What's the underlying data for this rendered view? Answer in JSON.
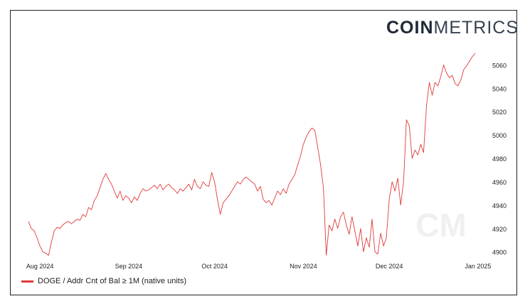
{
  "brand": {
    "logo_bold": "COIN",
    "logo_thin": "METRICS",
    "watermark": "CM"
  },
  "colors": {
    "series": "#e03a3a",
    "axis_text": "#222222",
    "watermark": "#f0f0f0"
  },
  "chart_data": {
    "type": "line",
    "grid": false,
    "legend_position": "bottom-left",
    "x_tick_labels": [
      "Aug 2024",
      "Sep 2024",
      "Oct 2024",
      "Nov 2024",
      "Dec 2024",
      "Jan 2025"
    ],
    "y_tick_labels": [
      "4900",
      "4920",
      "4940",
      "4960",
      "4980",
      "5000",
      "5020",
      "5040",
      "5060"
    ],
    "ylim": [
      4898,
      5073
    ],
    "xlim": [
      "2024-07-28",
      "2025-01-05"
    ],
    "series": [
      {
        "name": "DOGE / Addr Cnt of Bal ≥ 1M (native units)",
        "points": [
          [
            "2024-07-28",
            4926
          ],
          [
            "2024-07-29",
            4920
          ],
          [
            "2024-07-30",
            4918
          ],
          [
            "2024-07-31",
            4912
          ],
          [
            "2024-08-01",
            4905
          ],
          [
            "2024-08-02",
            4900
          ],
          [
            "2024-08-03",
            4899
          ],
          [
            "2024-08-04",
            4897
          ],
          [
            "2024-08-05",
            4908
          ],
          [
            "2024-08-06",
            4918
          ],
          [
            "2024-08-07",
            4921
          ],
          [
            "2024-08-08",
            4920
          ],
          [
            "2024-08-09",
            4923
          ],
          [
            "2024-08-10",
            4925
          ],
          [
            "2024-08-11",
            4926
          ],
          [
            "2024-08-12",
            4924
          ],
          [
            "2024-08-13",
            4926
          ],
          [
            "2024-08-14",
            4928
          ],
          [
            "2024-08-15",
            4927
          ],
          [
            "2024-08-16",
            4932
          ],
          [
            "2024-08-17",
            4930
          ],
          [
            "2024-08-18",
            4938
          ],
          [
            "2024-08-19",
            4936
          ],
          [
            "2024-08-20",
            4944
          ],
          [
            "2024-08-21",
            4948
          ],
          [
            "2024-08-22",
            4955
          ],
          [
            "2024-08-23",
            4962
          ],
          [
            "2024-08-24",
            4967
          ],
          [
            "2024-08-25",
            4962
          ],
          [
            "2024-08-26",
            4958
          ],
          [
            "2024-08-27",
            4952
          ],
          [
            "2024-08-28",
            4946
          ],
          [
            "2024-08-29",
            4952
          ],
          [
            "2024-08-30",
            4944
          ],
          [
            "2024-08-31",
            4948
          ],
          [
            "2024-09-01",
            4946
          ],
          [
            "2024-09-02",
            4942
          ],
          [
            "2024-09-03",
            4947
          ],
          [
            "2024-09-04",
            4944
          ],
          [
            "2024-09-05",
            4950
          ],
          [
            "2024-09-06",
            4954
          ],
          [
            "2024-09-07",
            4952
          ],
          [
            "2024-09-08",
            4953
          ],
          [
            "2024-09-09",
            4955
          ],
          [
            "2024-09-10",
            4957
          ],
          [
            "2024-09-11",
            4954
          ],
          [
            "2024-09-12",
            4958
          ],
          [
            "2024-09-13",
            4953
          ],
          [
            "2024-09-14",
            4956
          ],
          [
            "2024-09-15",
            4958
          ],
          [
            "2024-09-16",
            4955
          ],
          [
            "2024-09-17",
            4953
          ],
          [
            "2024-09-18",
            4950
          ],
          [
            "2024-09-19",
            4954
          ],
          [
            "2024-09-20",
            4952
          ],
          [
            "2024-09-21",
            4955
          ],
          [
            "2024-09-22",
            4958
          ],
          [
            "2024-09-23",
            4953
          ],
          [
            "2024-09-24",
            4962
          ],
          [
            "2024-09-25",
            4956
          ],
          [
            "2024-09-26",
            4954
          ],
          [
            "2024-09-27",
            4960
          ],
          [
            "2024-09-28",
            4957
          ],
          [
            "2024-09-29",
            4956
          ],
          [
            "2024-09-30",
            4968
          ],
          [
            "2024-10-01",
            4960
          ],
          [
            "2024-10-02",
            4945
          ],
          [
            "2024-10-03",
            4932
          ],
          [
            "2024-10-04",
            4942
          ],
          [
            "2024-10-05",
            4945
          ],
          [
            "2024-10-06",
            4948
          ],
          [
            "2024-10-07",
            4952
          ],
          [
            "2024-10-08",
            4956
          ],
          [
            "2024-10-09",
            4960
          ],
          [
            "2024-10-10",
            4958
          ],
          [
            "2024-10-11",
            4962
          ],
          [
            "2024-10-12",
            4964
          ],
          [
            "2024-10-13",
            4962
          ],
          [
            "2024-10-14",
            4960
          ],
          [
            "2024-10-15",
            4958
          ],
          [
            "2024-10-16",
            4952
          ],
          [
            "2024-10-17",
            4956
          ],
          [
            "2024-10-18",
            4945
          ],
          [
            "2024-10-19",
            4942
          ],
          [
            "2024-10-20",
            4944
          ],
          [
            "2024-10-21",
            4940
          ],
          [
            "2024-10-22",
            4946
          ],
          [
            "2024-10-23",
            4952
          ],
          [
            "2024-10-24",
            4949
          ],
          [
            "2024-10-25",
            4954
          ],
          [
            "2024-10-26",
            4950
          ],
          [
            "2024-10-27",
            4958
          ],
          [
            "2024-10-28",
            4962
          ],
          [
            "2024-10-29",
            4966
          ],
          [
            "2024-10-30",
            4974
          ],
          [
            "2024-10-31",
            4982
          ],
          [
            "2024-11-01",
            4992
          ],
          [
            "2024-11-02",
            4998
          ],
          [
            "2024-11-03",
            5003
          ],
          [
            "2024-11-04",
            5006
          ],
          [
            "2024-11-05",
            5004
          ],
          [
            "2024-11-06",
            4990
          ],
          [
            "2024-11-07",
            4975
          ],
          [
            "2024-11-08",
            4955
          ],
          [
            "2024-11-09",
            4897
          ],
          [
            "2024-11-10",
            4923
          ],
          [
            "2024-11-11",
            4918
          ],
          [
            "2024-11-12",
            4928
          ],
          [
            "2024-11-13",
            4920
          ],
          [
            "2024-11-14",
            4930
          ],
          [
            "2024-11-15",
            4934
          ],
          [
            "2024-11-16",
            4923
          ],
          [
            "2024-11-17",
            4915
          ],
          [
            "2024-11-18",
            4930
          ],
          [
            "2024-11-19",
            4918
          ],
          [
            "2024-11-20",
            4905
          ],
          [
            "2024-11-21",
            4920
          ],
          [
            "2024-11-22",
            4900
          ],
          [
            "2024-11-23",
            4912
          ],
          [
            "2024-11-24",
            4904
          ],
          [
            "2024-11-25",
            4928
          ],
          [
            "2024-11-26",
            4900
          ],
          [
            "2024-11-27",
            4898
          ],
          [
            "2024-11-28",
            4916
          ],
          [
            "2024-11-29",
            4905
          ],
          [
            "2024-11-30",
            4912
          ],
          [
            "2024-12-01",
            4945
          ],
          [
            "2024-12-02",
            4960
          ],
          [
            "2024-12-03",
            4952
          ],
          [
            "2024-12-04",
            4963
          ],
          [
            "2024-12-05",
            4940
          ],
          [
            "2024-12-06",
            4960
          ],
          [
            "2024-12-07",
            5013
          ],
          [
            "2024-12-08",
            5008
          ],
          [
            "2024-12-09",
            4980
          ],
          [
            "2024-12-10",
            4987
          ],
          [
            "2024-12-11",
            4983
          ],
          [
            "2024-12-12",
            4992
          ],
          [
            "2024-12-13",
            4985
          ],
          [
            "2024-12-14",
            5025
          ],
          [
            "2024-12-15",
            5045
          ],
          [
            "2024-12-16",
            5034
          ],
          [
            "2024-12-17",
            5045
          ],
          [
            "2024-12-18",
            5042
          ],
          [
            "2024-12-19",
            5050
          ],
          [
            "2024-12-20",
            5060
          ],
          [
            "2024-12-21",
            5053
          ],
          [
            "2024-12-22",
            5049
          ],
          [
            "2024-12-23",
            5051
          ],
          [
            "2024-12-24",
            5044
          ],
          [
            "2024-12-25",
            5042
          ],
          [
            "2024-12-26",
            5047
          ],
          [
            "2024-12-27",
            5056
          ],
          [
            "2024-12-28",
            5059
          ],
          [
            "2024-12-29",
            5063
          ],
          [
            "2024-12-30",
            5067
          ],
          [
            "2024-12-31",
            5070
          ]
        ]
      }
    ]
  },
  "legend": {
    "label": "DOGE / Addr Cnt of Bal ≥ 1M (native units)"
  }
}
